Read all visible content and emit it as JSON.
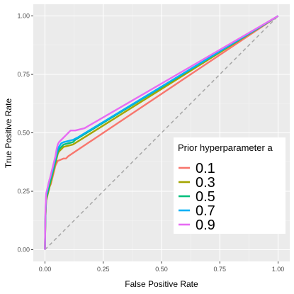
{
  "chart_data": {
    "type": "line",
    "title": "",
    "xlabel": "False Positive Rate",
    "ylabel": "True Positive Rate",
    "xlim": [
      -0.05,
      1.05
    ],
    "ylim": [
      -0.05,
      1.05
    ],
    "x_ticks": [
      0.0,
      0.25,
      0.5,
      0.75,
      1.0
    ],
    "y_ticks": [
      0.0,
      0.25,
      0.5,
      0.75,
      1.0
    ],
    "x_tick_labels": [
      "0.00",
      "0.25",
      "0.50",
      "0.75",
      "1.00"
    ],
    "y_tick_labels": [
      "0.00",
      "0.25",
      "0.50",
      "0.75",
      "1.00"
    ],
    "grid": true,
    "background": "#ebebeb",
    "legend": {
      "title": "Prior hyperparameter a",
      "placement": "bottom-right"
    },
    "reference_line": {
      "style": "dashed",
      "color": "#a6a6a6",
      "points": [
        [
          0,
          0
        ],
        [
          1,
          1
        ]
      ]
    },
    "series": [
      {
        "name": "0.1",
        "color": "#f8766d",
        "points": [
          [
            0,
            0
          ],
          [
            0.002,
            0.13
          ],
          [
            0.005,
            0.21
          ],
          [
            0.01,
            0.23
          ],
          [
            0.015,
            0.25
          ],
          [
            0.02,
            0.27
          ],
          [
            0.025,
            0.28
          ],
          [
            0.03,
            0.3
          ],
          [
            0.035,
            0.32
          ],
          [
            0.04,
            0.34
          ],
          [
            0.045,
            0.36
          ],
          [
            0.05,
            0.37
          ],
          [
            0.055,
            0.38
          ],
          [
            0.08,
            0.39
          ],
          [
            0.09,
            0.39
          ],
          [
            0.1,
            0.4
          ],
          [
            1,
            1
          ]
        ]
      },
      {
        "name": "0.3",
        "color": "#a3a500",
        "points": [
          [
            0,
            0
          ],
          [
            0.002,
            0.13
          ],
          [
            0.005,
            0.21
          ],
          [
            0.01,
            0.23
          ],
          [
            0.015,
            0.25
          ],
          [
            0.02,
            0.27
          ],
          [
            0.025,
            0.29
          ],
          [
            0.03,
            0.31
          ],
          [
            0.035,
            0.33
          ],
          [
            0.04,
            0.35
          ],
          [
            0.045,
            0.37
          ],
          [
            0.05,
            0.39
          ],
          [
            0.055,
            0.41
          ],
          [
            0.06,
            0.42
          ],
          [
            0.07,
            0.43
          ],
          [
            0.08,
            0.44
          ],
          [
            0.1,
            0.445
          ],
          [
            0.12,
            0.45
          ],
          [
            1,
            1
          ]
        ]
      },
      {
        "name": "0.5",
        "color": "#00bf7d",
        "points": [
          [
            0,
            0
          ],
          [
            0.002,
            0.14
          ],
          [
            0.005,
            0.22
          ],
          [
            0.01,
            0.24
          ],
          [
            0.015,
            0.26
          ],
          [
            0.02,
            0.28
          ],
          [
            0.025,
            0.3
          ],
          [
            0.03,
            0.32
          ],
          [
            0.035,
            0.34
          ],
          [
            0.04,
            0.36
          ],
          [
            0.045,
            0.38
          ],
          [
            0.05,
            0.4
          ],
          [
            0.055,
            0.42
          ],
          [
            0.06,
            0.43
          ],
          [
            0.07,
            0.44
          ],
          [
            0.08,
            0.45
          ],
          [
            0.1,
            0.455
          ],
          [
            0.12,
            0.46
          ],
          [
            0.13,
            0.47
          ],
          [
            1,
            1
          ]
        ]
      },
      {
        "name": "0.7",
        "color": "#00b0f6",
        "points": [
          [
            0,
            0
          ],
          [
            0.002,
            0.15
          ],
          [
            0.005,
            0.23
          ],
          [
            0.01,
            0.25
          ],
          [
            0.015,
            0.28
          ],
          [
            0.02,
            0.3
          ],
          [
            0.025,
            0.31
          ],
          [
            0.03,
            0.33
          ],
          [
            0.035,
            0.35
          ],
          [
            0.04,
            0.37
          ],
          [
            0.045,
            0.39
          ],
          [
            0.05,
            0.41
          ],
          [
            0.055,
            0.43
          ],
          [
            0.06,
            0.44
          ],
          [
            0.07,
            0.455
          ],
          [
            0.08,
            0.46
          ],
          [
            0.1,
            0.465
          ],
          [
            0.12,
            0.47
          ],
          [
            0.14,
            0.48
          ],
          [
            1,
            1
          ]
        ]
      },
      {
        "name": "0.9",
        "color": "#e76bf3",
        "points": [
          [
            0,
            0
          ],
          [
            0.002,
            0.16
          ],
          [
            0.005,
            0.24
          ],
          [
            0.01,
            0.26
          ],
          [
            0.015,
            0.28
          ],
          [
            0.02,
            0.3
          ],
          [
            0.025,
            0.32
          ],
          [
            0.03,
            0.34
          ],
          [
            0.035,
            0.36
          ],
          [
            0.04,
            0.38
          ],
          [
            0.045,
            0.4
          ],
          [
            0.05,
            0.43
          ],
          [
            0.055,
            0.45
          ],
          [
            0.06,
            0.46
          ],
          [
            0.07,
            0.47
          ],
          [
            0.08,
            0.48
          ],
          [
            0.09,
            0.49
          ],
          [
            0.1,
            0.5
          ],
          [
            0.11,
            0.51
          ],
          [
            0.13,
            0.51
          ],
          [
            0.15,
            0.515
          ],
          [
            0.17,
            0.52
          ],
          [
            1,
            1
          ]
        ]
      }
    ]
  }
}
